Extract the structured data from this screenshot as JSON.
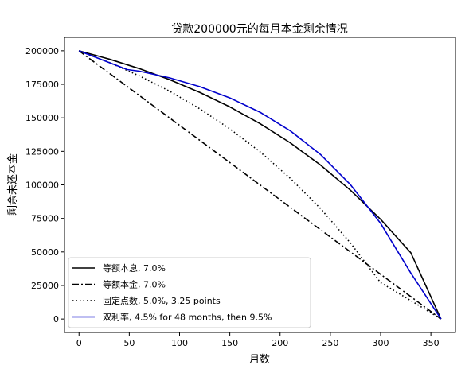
{
  "chart_data": {
    "type": "line",
    "title": "贷款200000元的每月本金剩余情况",
    "xlabel": "月数",
    "ylabel": "剩余未还本金",
    "xlim": [
      -14.45,
      374.45
    ],
    "ylim": [
      -10000,
      210000
    ],
    "xticks": [
      0,
      50,
      100,
      150,
      200,
      250,
      300,
      350
    ],
    "yticks": [
      0,
      25000,
      50000,
      75000,
      100000,
      125000,
      150000,
      175000,
      200000
    ],
    "xtick_labels": [
      "0",
      "50",
      "100",
      "150",
      "200",
      "250",
      "300",
      "350"
    ],
    "ytick_labels": [
      "0",
      "25000",
      "50000",
      "75000",
      "100000",
      "125000",
      "150000",
      "175000",
      "200000"
    ],
    "grid": false,
    "legend_position": "lower-left",
    "series": [
      {
        "name": "等额本息, 7.0%",
        "color": "#000000",
        "style": "solid",
        "x": [
          0,
          30,
          60,
          90,
          120,
          150,
          180,
          210,
          240,
          270,
          300,
          330,
          360
        ],
        "y": [
          200000,
          193800,
          186700,
          178500,
          169000,
          158200,
          145700,
          131400,
          114900,
          96000,
          74300,
          49400,
          0
        ]
      },
      {
        "name": "等额本金, 7.0%",
        "color": "#000000",
        "style": "dashdot",
        "x": [
          0,
          60,
          120,
          180,
          240,
          300,
          360
        ],
        "y": [
          200000,
          166667,
          133333,
          100000,
          66667,
          33333,
          0
        ]
      },
      {
        "name": "固定点数, 5.0%, 3.25 points",
        "color": "#000000",
        "style": "dotted",
        "x": [
          0,
          30,
          60,
          90,
          120,
          150,
          180,
          210,
          240,
          270,
          300,
          330,
          360
        ],
        "y": [
          200000,
          191300,
          181300,
          169900,
          156800,
          141800,
          124700,
          105000,
          82500,
          56700,
          27100,
          13800,
          0
        ]
      },
      {
        "name": "双利率, 4.5% for 48 months, then 9.5%",
        "color": "#0000cc",
        "style": "solid",
        "x": [
          0,
          24,
          48,
          60,
          90,
          120,
          150,
          180,
          210,
          240,
          270,
          300,
          330,
          360
        ],
        "y": [
          200000,
          193000,
          186000,
          184800,
          179800,
          173300,
          164900,
          154200,
          140400,
          122800,
          100200,
          71300,
          34300,
          0
        ]
      }
    ]
  }
}
